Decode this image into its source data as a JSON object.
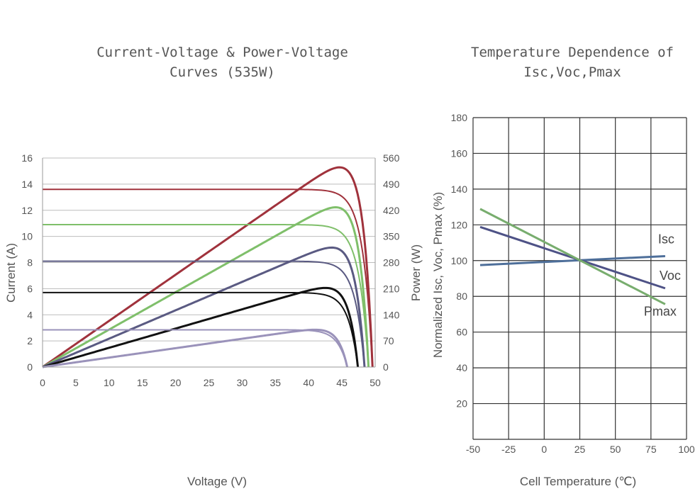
{
  "chart_data": [
    {
      "type": "line",
      "title": "Current-Voltage & Power-Voltage\nCurves (535W)",
      "xlabel": "Voltage (V)",
      "ylabel": "Current (A)",
      "y2label": "Power (W)",
      "xlim": [
        0,
        50
      ],
      "ylim": [
        0,
        16
      ],
      "y2lim": [
        0,
        560
      ],
      "xticks": [
        "0",
        "5",
        "10",
        "15",
        "20",
        "25",
        "30",
        "35",
        "40",
        "45",
        "50"
      ],
      "yticks": [
        "0",
        "2",
        "4",
        "6",
        "8",
        "10",
        "12",
        "14",
        "16"
      ],
      "y2ticks": [
        "0",
        "70",
        "140",
        "210",
        "280",
        "350",
        "420",
        "490",
        "560"
      ],
      "grid": "horizontal",
      "series": [
        {
          "color": "#a0323c",
          "isc": 13.6,
          "voc": 49.6,
          "vmp": 41.0,
          "pmax": 535
        },
        {
          "color": "#7fbf6a",
          "isc": 10.9,
          "voc": 49.0,
          "vmp": 40.8,
          "pmax": 428
        },
        {
          "color": "#5a5a82",
          "isc": 8.1,
          "voc": 48.4,
          "vmp": 40.6,
          "pmax": 320
        },
        {
          "color": "#111111",
          "isc": 5.7,
          "voc": 47.4,
          "vmp": 40.2,
          "pmax": 212
        },
        {
          "color": "#9a92ba",
          "isc": 2.85,
          "voc": 45.8,
          "vmp": 38.6,
          "pmax": 100
        }
      ]
    },
    {
      "type": "line",
      "title": "Temperature Dependence of\nIsc,Voc,Pmax",
      "xlabel": "Cell Temperature (℃)",
      "ylabel": "Normalized Isc, Voc, Pmax (%)",
      "xlim": [
        -50,
        100
      ],
      "ylim": [
        0,
        180
      ],
      "xticks": [
        "-50",
        "-25",
        "0",
        "25",
        "50",
        "75",
        "100"
      ],
      "yticks": [
        "20",
        "40",
        "60",
        "80",
        "100",
        "120",
        "140",
        "160",
        "180"
      ],
      "grid": "both",
      "series": [
        {
          "name": "Isc",
          "color": "#4e6f9a",
          "x": [
            -45,
            85
          ],
          "y": [
            97.5,
            102.5
          ]
        },
        {
          "name": "Voc",
          "color": "#4e5286",
          "x": [
            -45,
            85
          ],
          "y": [
            118.8,
            84.5
          ]
        },
        {
          "name": "Pmax",
          "color": "#78ad6e",
          "x": [
            -45,
            85
          ],
          "y": [
            128.9,
            75.6
          ]
        }
      ]
    }
  ]
}
